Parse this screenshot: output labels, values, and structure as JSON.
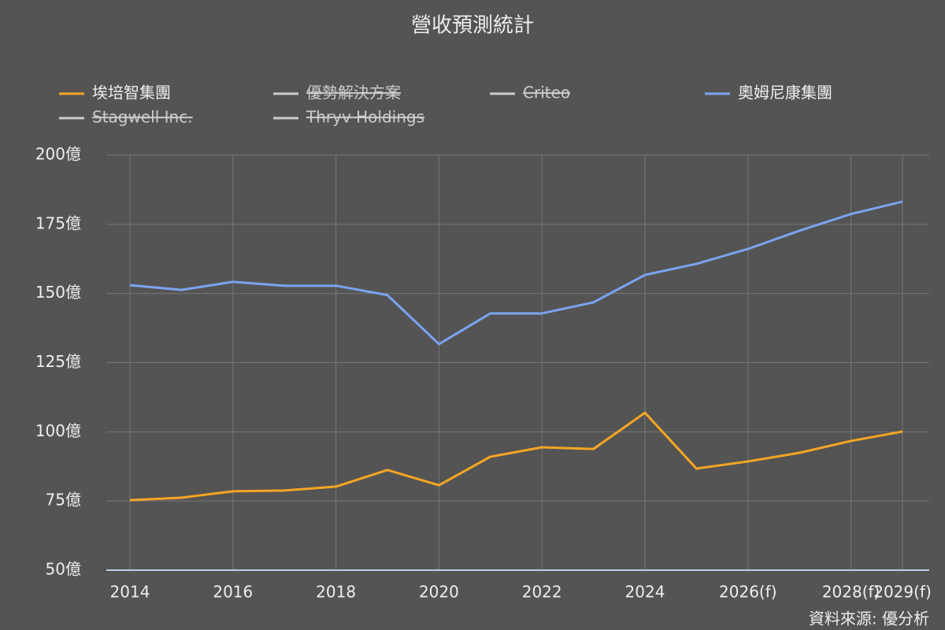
{
  "chart_data": {
    "type": "line",
    "title": "營收預測統計",
    "source": "資料來源: 優分析",
    "x": [
      2014,
      2015,
      2016,
      2017,
      2018,
      2019,
      2020,
      2021,
      2022,
      2023,
      2024,
      2025,
      2026,
      2027,
      2028,
      2029
    ],
    "xlim": [
      2014,
      2029
    ],
    "xticks": [
      2014,
      2016,
      2018,
      2020,
      2022,
      2024,
      {
        "value": 2026,
        "label": "2026(f)"
      },
      {
        "value": 2028,
        "label": "2028(f)"
      },
      {
        "value": 2029,
        "label": "2029(f)"
      }
    ],
    "ylim": [
      50,
      200
    ],
    "yticks": [
      {
        "value": 50,
        "label": "50億"
      },
      {
        "value": 75,
        "label": "75億"
      },
      {
        "value": 100,
        "label": "100億"
      },
      {
        "value": 125,
        "label": "125億"
      },
      {
        "value": 150,
        "label": "150億"
      },
      {
        "value": 175,
        "label": "175億"
      },
      {
        "value": 200,
        "label": "200億"
      }
    ],
    "grid": true,
    "series": [
      {
        "name": "埃培智集團",
        "color": "#f5a623",
        "values": [
          75.3,
          76.2,
          78.5,
          78.8,
          80.2,
          86.2,
          80.7,
          91.0,
          94.4,
          93.8,
          106.9,
          86.7,
          89.3,
          92.4,
          96.7,
          100.1
        ]
      },
      {
        "name": "優勢解決方案",
        "color": "#cccccc",
        "hidden": true
      },
      {
        "name": "Criteo",
        "color": "#cccccc",
        "hidden": true
      },
      {
        "name": "奧姆尼康集團",
        "color": "#7ba3f0",
        "values": [
          153.0,
          151.3,
          154.2,
          152.8,
          152.8,
          149.4,
          131.7,
          142.8,
          142.8,
          146.8,
          156.7,
          160.7,
          166.1,
          172.7,
          178.7,
          183.2
        ]
      },
      {
        "name": "Stagwell Inc.",
        "color": "#cccccc",
        "hidden": true
      },
      {
        "name": "Thryv Holdings",
        "color": "#cccccc",
        "hidden": true
      }
    ]
  }
}
